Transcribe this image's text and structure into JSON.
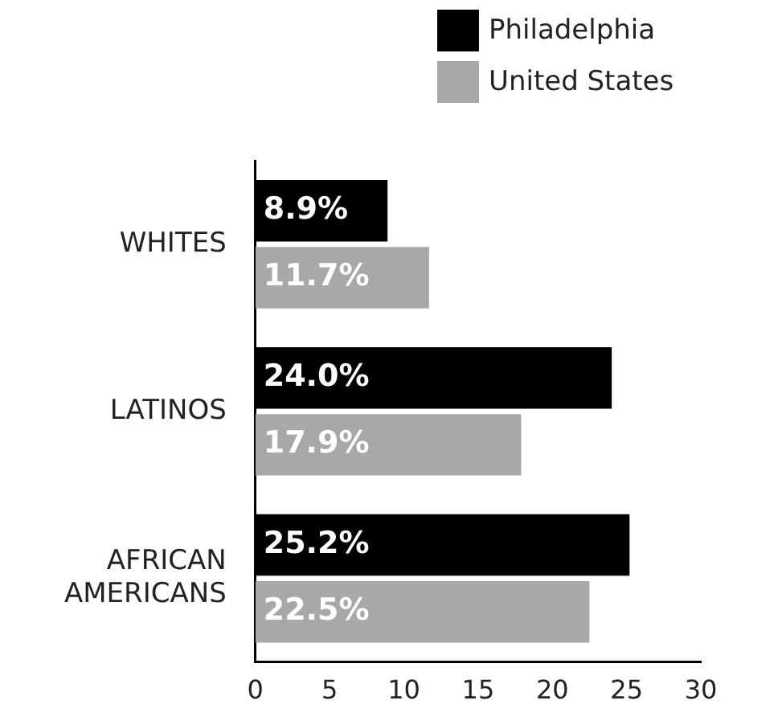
{
  "chart_data": {
    "type": "bar",
    "orientation": "horizontal",
    "categories": [
      "WHITES",
      "LATINOS",
      "AFRICAN AMERICANS"
    ],
    "series": [
      {
        "name": "Philadelphia",
        "color": "#000000",
        "values": [
          8.9,
          24.0,
          25.2
        ],
        "value_labels": [
          "8.9%",
          "24.0%",
          "25.2%"
        ]
      },
      {
        "name": "United States",
        "color": "#a7a8aa",
        "values": [
          11.7,
          17.9,
          22.5
        ],
        "value_labels": [
          "11.7%",
          "17.9%",
          "22.5%"
        ]
      }
    ],
    "xlim": [
      0,
      30
    ],
    "xticks": [
      0,
      5,
      10,
      15,
      20,
      25,
      30
    ],
    "grid": false,
    "legend": "top right"
  }
}
